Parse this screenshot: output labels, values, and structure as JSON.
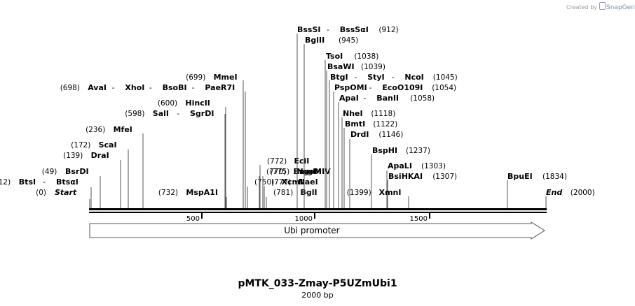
{
  "credit": {
    "prefix": "Created by",
    "brand": "SnapGene"
  },
  "plasmid": {
    "name": "pMTK_033-Zmay-P5UZmUbi1",
    "size_text": "2000 bp"
  },
  "ruler": {
    "ticks": [
      "500",
      "1000",
      "1500"
    ]
  },
  "features": [
    {
      "label": "Ubi promoter"
    }
  ],
  "colors": {
    "line": "#000000",
    "thin_line": "#555555",
    "arrow_fill": "#ffffff"
  },
  "sites": [
    {
      "name": "Start",
      "pos": "(0)",
      "italic": true
    },
    {
      "name": "BtsI",
      "name2": "BtsαI",
      "pos": "(12)"
    },
    {
      "name": "BsrDI",
      "pos": "(49)"
    },
    {
      "name": "DraI",
      "pos": "(139)"
    },
    {
      "name": "ScaI",
      "pos": "(172)"
    },
    {
      "name": "MfeI",
      "pos": "(236)"
    },
    {
      "name": "SalI",
      "name2": "SgrDI",
      "pos": "(598)"
    },
    {
      "name": "HincII",
      "pos": "(600)"
    },
    {
      "name": "AvaI",
      "name2": "XhoI",
      "name3": "BsoBI",
      "name4": "PaeR7I",
      "pos": "(698)"
    },
    {
      "name": "MmeI",
      "pos": "(699)"
    },
    {
      "name": "MspA1I",
      "pos": "(732)"
    },
    {
      "name": "XcmI",
      "pos": "(750)"
    },
    {
      "name": "BmgBI",
      "pos": "(770)"
    },
    {
      "name": "EciI",
      "pos": "(772)"
    },
    {
      "name": "NgoMIV",
      "pos": "(775)"
    },
    {
      "name": "NaeI",
      "pos": "(777)"
    },
    {
      "name": "BglI",
      "pos": "(781)"
    },
    {
      "name": "BssSI",
      "name2": "BssSαI",
      "pos": "(912)"
    },
    {
      "name": "BglII",
      "pos": "(945)"
    },
    {
      "name": "TsoI",
      "pos": "(1038)"
    },
    {
      "name": "BsaWI",
      "pos": "(1039)"
    },
    {
      "name": "BtgI",
      "name2": "StyI",
      "name3": "NcoI",
      "pos": "(1045)"
    },
    {
      "name": "PspOMI",
      "name2": "EcoO109I",
      "pos": "(1054)"
    },
    {
      "name": "ApaI",
      "name2": "BanII",
      "pos": "(1058)"
    },
    {
      "name": "NheI",
      "pos": "(1118)"
    },
    {
      "name": "BmtI",
      "pos": "(1122)"
    },
    {
      "name": "DrdI",
      "pos": "(1146)"
    },
    {
      "name": "BspHI",
      "pos": "(1237)"
    },
    {
      "name": "ApaLI",
      "pos": "(1303)"
    },
    {
      "name": "BsiHKAI",
      "pos": "(1307)"
    },
    {
      "name": "XmnI",
      "pos": "(1399)"
    },
    {
      "name": "BpuEI",
      "pos": "(1834)"
    },
    {
      "name": "End",
      "pos": "(2000)",
      "italic": true
    }
  ]
}
